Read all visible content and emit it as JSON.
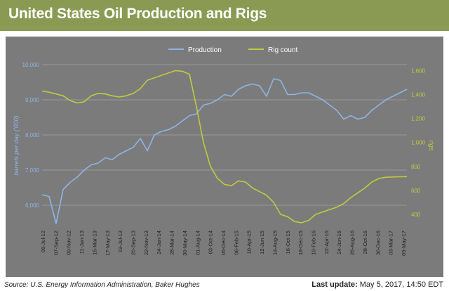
{
  "header": {
    "title": "United States Oil Production and Rigs",
    "background": "#8a9a52"
  },
  "footer": {
    "source": "Source: U.S. Energy Information Administration, Baker Hughes",
    "update_label": "Last update:",
    "update_value": "May 5, 2017, 14:50 EDT"
  },
  "chart_data": {
    "type": "line",
    "title": "",
    "ylabel": "barrels per day ('000)",
    "y2label": "rigs",
    "ylim": [
      5400,
      10000
    ],
    "y2lim": [
      300,
      1650
    ],
    "yticks": [
      "6,000",
      "7,000",
      "8,000",
      "9,000",
      "10,000"
    ],
    "y2ticks": [
      "400",
      "600",
      "800",
      "1,000",
      "1,200",
      "1,400",
      "1,600"
    ],
    "grid": true,
    "legend": "top-center",
    "background": "#7b7b7b",
    "x_tick_labels": [
      "06-Jul-12",
      "07-Sep-12",
      "09-Nov-12",
      "11-Jan-13",
      "15-Mar-13",
      "17-May-13",
      "19-Jul-13",
      "20-Sep-13",
      "22-Nov-13",
      "24-Jan-14",
      "28-Mar-14",
      "30-May-14",
      "01-Aug-14",
      "03-Oct-14",
      "05-Dec-14",
      "06-Feb-15",
      "10-Apr-15",
      "12-Jun-15",
      "14-Aug-15",
      "16-Oct-15",
      "18-Dec-15",
      "19-Feb-16",
      "22-Apr-16",
      "24-Jun-16",
      "26-Aug-16",
      "28-Oct-16",
      "30-Dec-16",
      "03-Mar-17",
      "05-May-17"
    ],
    "series": [
      {
        "name": "Production",
        "axis": "left",
        "color": "#8fb4e3",
        "values": [
          6300,
          6250,
          5480,
          6450,
          6650,
          6800,
          7000,
          7150,
          7200,
          7350,
          7300,
          7450,
          7550,
          7650,
          7900,
          7550,
          8000,
          8100,
          8150,
          8250,
          8400,
          8550,
          8600,
          8850,
          8900,
          9000,
          9150,
          9100,
          9300,
          9400,
          9450,
          9400,
          9100,
          9600,
          9550,
          9150,
          9150,
          9200,
          9200,
          9100,
          9000,
          8850,
          8700,
          8450,
          8550,
          8450,
          8500,
          8700,
          8850,
          9000,
          9100,
          9200,
          9300
        ]
      },
      {
        "name": "Rig count",
        "axis": "right",
        "color": "#c2ca3e",
        "values": [
          1430,
          1420,
          1405,
          1390,
          1350,
          1330,
          1340,
          1390,
          1410,
          1405,
          1390,
          1380,
          1390,
          1410,
          1450,
          1520,
          1540,
          1560,
          1580,
          1600,
          1595,
          1570,
          1300,
          1000,
          800,
          700,
          650,
          640,
          680,
          670,
          620,
          590,
          560,
          500,
          400,
          380,
          340,
          330,
          350,
          400,
          420,
          440,
          460,
          490,
          540,
          580,
          620,
          670,
          700,
          710,
          712,
          714,
          715
        ]
      }
    ]
  }
}
